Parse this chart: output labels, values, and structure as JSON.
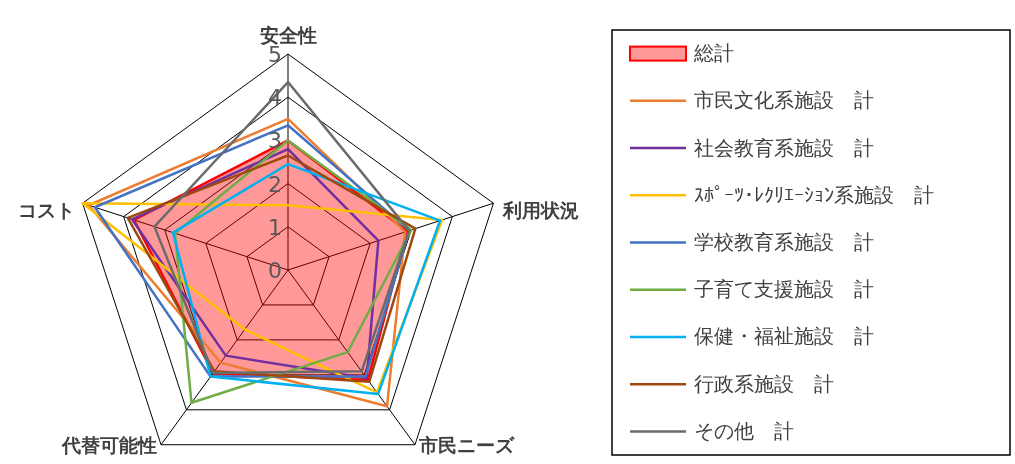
{
  "chart_data": {
    "type": "radar",
    "categories": [
      "安全性",
      "利用状況",
      "市民ニーズ",
      "代替可能性",
      "コスト"
    ],
    "ylim": [
      0,
      5
    ],
    "yticks": [
      0,
      1,
      2,
      3,
      4,
      5
    ],
    "grid": true,
    "legend": "right",
    "series": [
      {
        "name": "総計",
        "type": "area",
        "color": "#ff0000",
        "values": [
          3.0,
          2.9,
          3.15,
          2.95,
          3.75
        ]
      },
      {
        "name": "市民文化系施設　計",
        "color": "#ed7d31",
        "values": [
          3.5,
          2.85,
          3.9,
          2.65,
          4.85
        ]
      },
      {
        "name": "社会教育系施設　計",
        "color": "#7030a0",
        "values": [
          2.8,
          2.2,
          3.1,
          2.45,
          3.8
        ]
      },
      {
        "name": "ｽﾎﾟｰﾂ･ﾚｸﾘｴｰｼｮﾝ系施設　計",
        "color": "#ffc000",
        "values": [
          1.5,
          3.75,
          3.5,
          1.7,
          5.0
        ]
      },
      {
        "name": "学校教育系施設　計",
        "color": "#4472c4",
        "values": [
          3.35,
          2.95,
          3.05,
          3.05,
          4.7
        ]
      },
      {
        "name": "子育て支援施設　計",
        "color": "#70ad47",
        "values": [
          3.0,
          3.0,
          2.35,
          3.8,
          2.75
        ]
      },
      {
        "name": "保健・福祉施設　計",
        "color": "#00b0f0",
        "values": [
          2.45,
          3.7,
          3.55,
          3.05,
          2.8
        ]
      },
      {
        "name": "行政系施設　計",
        "color": "#9e480e",
        "values": [
          2.65,
          3.1,
          3.2,
          2.9,
          3.9
        ]
      },
      {
        "name": "その他　計",
        "color": "#6b6b6b",
        "values": [
          4.35,
          2.95,
          2.9,
          2.95,
          3.25
        ]
      }
    ]
  }
}
